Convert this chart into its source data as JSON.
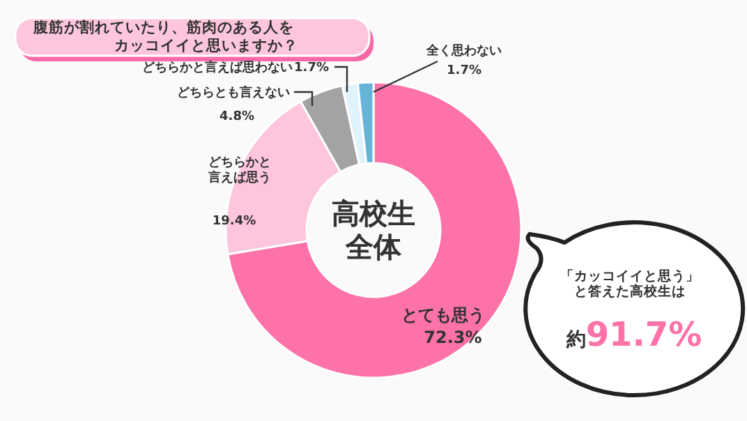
{
  "chart_data": {
    "type": "donut",
    "title": "腹筋が割れていたり、筋肉のある人をカッコイイと思いますか？",
    "categories": [
      "とても思う",
      "どちらかと言えば思う",
      "どちらとも言えない",
      "どちらかと言えば思わない",
      "全く思わない"
    ],
    "values": [
      72.3,
      19.4,
      4.8,
      1.7,
      1.7
    ],
    "colors": [
      "#fd72a8",
      "#fdc6dd",
      "#a3a3a3",
      "#e0f2fb",
      "#66b3d8"
    ],
    "value_labels": [
      "72.3%",
      "19.4%",
      "4.8%",
      "1.7%",
      "1.7%"
    ],
    "annotations": [
      "高校生全体",
      "「カッコイイと思う」と答えた高校生は",
      "約91.7%"
    ]
  }
}
